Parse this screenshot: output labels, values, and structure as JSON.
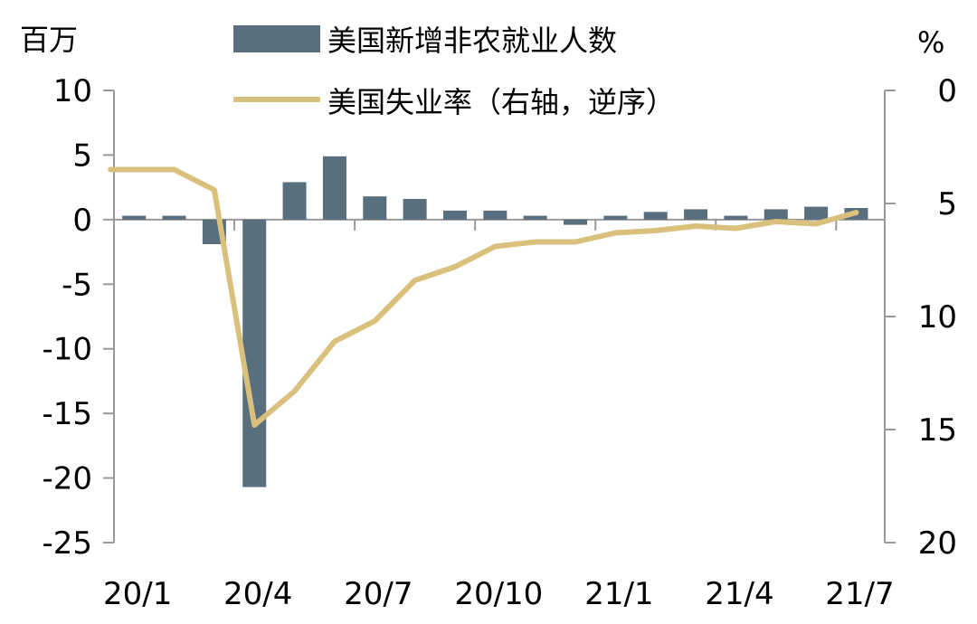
{
  "chart_data": {
    "type": "bar+line",
    "title": "",
    "left_axis": {
      "unit": "百万",
      "ticks": [
        10,
        5,
        0,
        -5,
        -10,
        -15,
        -20,
        -25
      ],
      "range": [
        -25,
        10
      ]
    },
    "right_axis": {
      "unit": "%",
      "ticks": [
        0,
        5,
        10,
        15,
        20
      ],
      "range": [
        0,
        20
      ],
      "reversed": true
    },
    "x_tick_labels": [
      "20/1",
      "20/4",
      "20/7",
      "20/10",
      "21/1",
      "21/4",
      "21/7"
    ],
    "x": [
      "20/1",
      "20/2",
      "20/3",
      "20/4",
      "20/5",
      "20/6",
      "20/7",
      "20/8",
      "20/9",
      "20/10",
      "20/11",
      "20/12",
      "21/1",
      "21/2",
      "21/3",
      "21/4",
      "21/5",
      "21/6",
      "21/7"
    ],
    "series": [
      {
        "name": "美国新增非农就业人数",
        "type": "bar",
        "axis": "left",
        "color": "#5a6f7e",
        "values": [
          0.3,
          0.3,
          -1.9,
          -20.7,
          2.9,
          4.9,
          1.8,
          1.6,
          0.7,
          0.7,
          0.3,
          -0.4,
          0.3,
          0.6,
          0.8,
          0.3,
          0.8,
          1.0,
          0.9
        ]
      },
      {
        "name": "美国失业率（右轴，逆序）",
        "type": "line",
        "axis": "right",
        "color": "#d9c07c",
        "values": [
          3.5,
          3.5,
          4.4,
          14.8,
          13.3,
          11.1,
          10.2,
          8.4,
          7.8,
          6.9,
          6.7,
          6.7,
          6.3,
          6.2,
          6.0,
          6.1,
          5.8,
          5.9,
          5.4
        ]
      }
    ],
    "legend_position": "top-center"
  }
}
